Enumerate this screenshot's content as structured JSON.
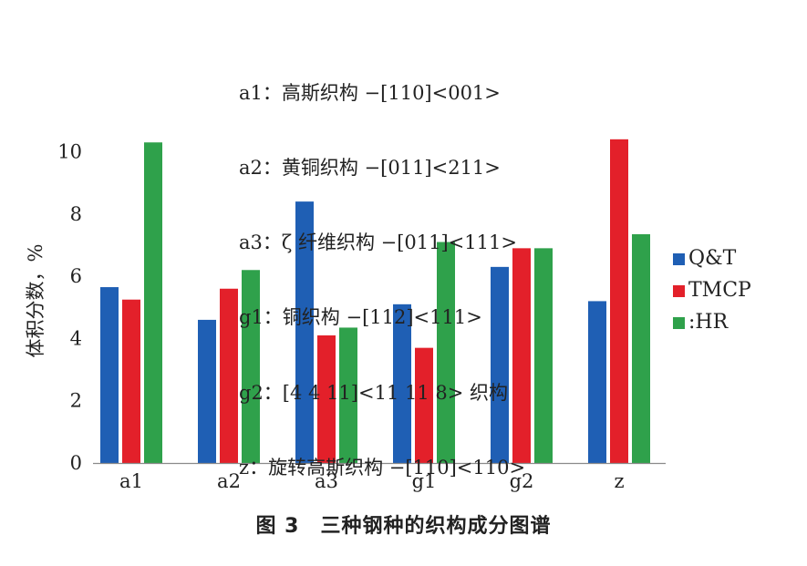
{
  "chart_data": {
    "type": "bar",
    "categories": [
      "a1",
      "a2",
      "a3",
      "g1",
      "g2",
      "z"
    ],
    "series": [
      {
        "name": "Q&T",
        "color": "#1f5fb4",
        "values": [
          5.65,
          4.6,
          8.4,
          5.1,
          6.3,
          5.2
        ]
      },
      {
        "name": "TMCP",
        "color": "#e3202a",
        "values": [
          5.25,
          5.6,
          4.1,
          3.7,
          6.9,
          10.4
        ]
      },
      {
        "name": "HR",
        "color": "#2fa14b",
        "values": [
          10.3,
          6.2,
          4.35,
          7.1,
          6.9,
          7.35
        ]
      }
    ],
    "legend_labels": [
      "Q&T",
      "TMCP",
      ":HR"
    ],
    "ylabel": "体积分数，%",
    "ylim": [
      0,
      10.6
    ],
    "yticks": [
      0,
      2,
      4,
      6,
      8,
      10
    ],
    "grid": false,
    "legend_position": "right",
    "annotations": [
      "a1：高斯织构 −[110]<001>",
      "a2：黄铜织构 −[011]<211>",
      "a3：ζ 纤维织构 −[011]<111>",
      "g1：铜织构 −[112]<111>",
      "g2：[4 4 11]<11 11 8> 织构",
      "z：旋转高斯织构 −[110]<110>"
    ],
    "caption": "图 3　三种钢种的织构成分图谱"
  }
}
